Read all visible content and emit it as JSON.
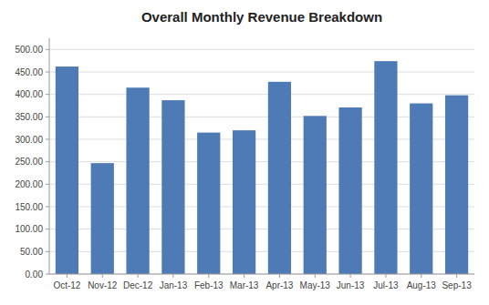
{
  "chart_data": {
    "type": "bar",
    "title": "Overall Monthly Revenue Breakdown",
    "categories": [
      "Oct-12",
      "Nov-12",
      "Dec-12",
      "Jan-13",
      "Feb-13",
      "Mar-13",
      "Apr-13",
      "May-13",
      "Jun-13",
      "Jul-13",
      "Aug-13",
      "Sep-13"
    ],
    "values": [
      462,
      247,
      415,
      387,
      315,
      320,
      428,
      352,
      371,
      474,
      380,
      398
    ],
    "color": "#4E7BB5",
    "ylim": [
      0,
      525
    ],
    "yticks": [
      {
        "value": 0,
        "label": "0.00"
      },
      {
        "value": 50,
        "label": "50.00"
      },
      {
        "value": 100,
        "label": "100.00"
      },
      {
        "value": 150,
        "label": "150.00"
      },
      {
        "value": 200,
        "label": "200.00"
      },
      {
        "value": 250,
        "label": "250.00"
      },
      {
        "value": 300,
        "label": "300.00"
      },
      {
        "value": 350,
        "label": "350.00"
      },
      {
        "value": 400,
        "label": "400.00"
      },
      {
        "value": 450,
        "label": "450.00"
      },
      {
        "value": 500,
        "label": "500.00"
      }
    ],
    "grid": true
  }
}
